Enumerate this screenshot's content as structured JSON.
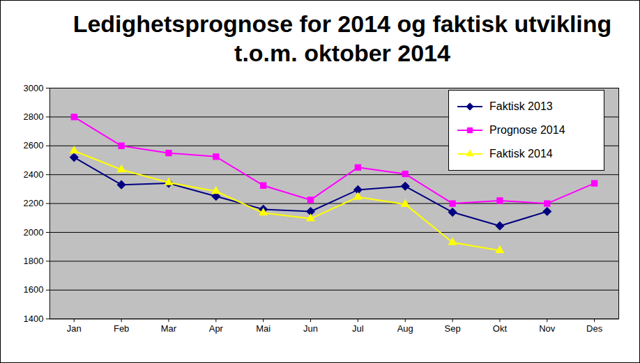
{
  "chart_data": {
    "type": "line",
    "title": "Ledighetsprognose for 2014 og faktisk utvikling t.o.m. oktober 2014",
    "categories": [
      "Jan",
      "Feb",
      "Mar",
      "Apr",
      "Mai",
      "Jun",
      "Jul",
      "Aug",
      "Sep",
      "Okt",
      "Nov",
      "Des"
    ],
    "series": [
      {
        "name": "Faktisk 2013",
        "color": "#000080",
        "marker": "diamond",
        "values": [
          2520,
          2330,
          2340,
          2250,
          2160,
          2145,
          2295,
          2320,
          2140,
          2045,
          2145,
          null
        ]
      },
      {
        "name": "Prognose 2014",
        "color": "#ff00ff",
        "marker": "square",
        "values": [
          2800,
          2600,
          2550,
          2525,
          2325,
          2225,
          2450,
          2405,
          2200,
          2220,
          2200,
          2340
        ]
      },
      {
        "name": "Faktisk 2014",
        "color": "#ffff00",
        "marker": "triangle",
        "values": [
          2565,
          2435,
          2345,
          2285,
          2135,
          2095,
          2245,
          2195,
          1930,
          1875,
          null,
          null
        ]
      }
    ],
    "ylim": [
      1400,
      3000
    ],
    "yticks": [
      1400,
      1600,
      1800,
      2000,
      2200,
      2400,
      2600,
      2800,
      3000
    ],
    "grid": true,
    "legend": "top-right"
  }
}
